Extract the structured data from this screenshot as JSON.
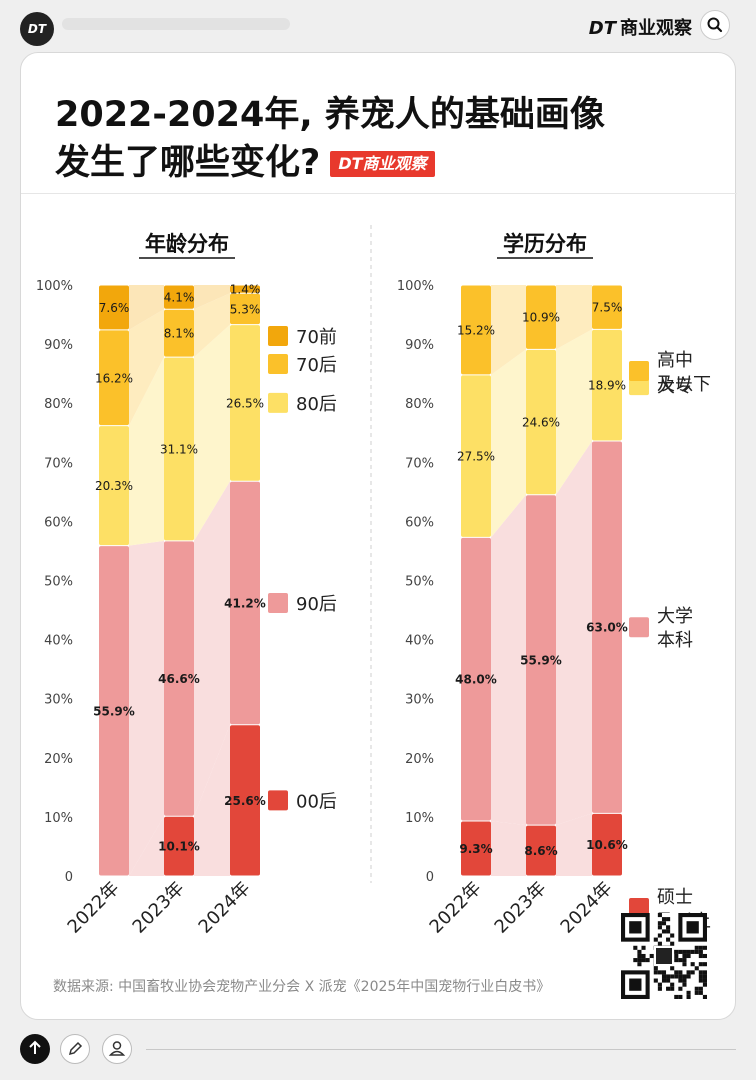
{
  "header": {
    "logo": "DT",
    "brand_dt": "DT",
    "brand_name": "商业观察"
  },
  "title": {
    "line1": "2022-2024年, 养宠人的基础画像",
    "line2": "发生了哪些变化?",
    "badge": "DT商业观察"
  },
  "source": "数据来源: 中国畜牧业协会宠物产业分会 X 派宠《2025年中国宠物行业白皮书》",
  "colors": {
    "red": "#e2473a",
    "pink": "#ee9a9a",
    "pink_light": "#f9dede",
    "yellow": "#fde065",
    "yellow_light": "#fef5cc",
    "amber": "#fbc12a",
    "amber_light": "#feecbf",
    "orange": "#f2a70c",
    "orange_light": "#fce6b8"
  },
  "chart_data": [
    {
      "type": "bar",
      "stacked": true,
      "title": "年龄分布",
      "categories": [
        "2022年",
        "2023年",
        "2024年"
      ],
      "ylim": [
        0,
        100
      ],
      "yticks": [
        "0",
        "10%",
        "20%",
        "30%",
        "40%",
        "50%",
        "60%",
        "70%",
        "80%",
        "90%",
        "100%"
      ],
      "series": [
        {
          "name": "00后",
          "values": [
            0,
            10.1,
            25.6
          ],
          "labels": [
            "",
            "10.1%",
            "25.6%"
          ],
          "color": "#e2473a",
          "band": "#f9dede"
        },
        {
          "name": "90后",
          "values": [
            55.9,
            46.6,
            41.2
          ],
          "labels": [
            "55.9%",
            "46.6%",
            "41.2%"
          ],
          "color": "#ee9a9a",
          "band": "#f9dede"
        },
        {
          "name": "80后",
          "values": [
            20.3,
            31.1,
            26.5
          ],
          "labels": [
            "20.3%",
            "31.1%",
            "26.5%"
          ],
          "color": "#fde065",
          "band": "#fef5cc"
        },
        {
          "name": "70后",
          "values": [
            16.2,
            8.1,
            5.3
          ],
          "labels": [
            "16.2%",
            "8.1%",
            "5.3%"
          ],
          "color": "#fbc12a",
          "band": "#feecbf"
        },
        {
          "name": "70前",
          "values": [
            7.6,
            4.1,
            1.4
          ],
          "labels": [
            "7.6%",
            "4.1%",
            "1.4%"
          ],
          "color": "#f2a70c",
          "band": "#fce6b8"
        }
      ],
      "legend": [
        "70前",
        "70后",
        "80后",
        "90后",
        "00后"
      ]
    },
    {
      "type": "bar",
      "stacked": true,
      "title": "学历分布",
      "categories": [
        "2022年",
        "2023年",
        "2024年"
      ],
      "ylim": [
        0,
        100
      ],
      "yticks": [
        "0",
        "10%",
        "20%",
        "30%",
        "40%",
        "50%",
        "60%",
        "70%",
        "80%",
        "90%",
        "100%"
      ],
      "series": [
        {
          "name": "硕士\n及以上",
          "values": [
            9.3,
            8.6,
            10.6
          ],
          "labels": [
            "9.3%",
            "8.6%",
            "10.6%"
          ],
          "color": "#e2473a",
          "band": "#f9dede"
        },
        {
          "name": "大学\n本科",
          "values": [
            48.0,
            55.9,
            63.0
          ],
          "labels": [
            "48.0%",
            "55.9%",
            "63.0%"
          ],
          "color": "#ee9a9a",
          "band": "#f9dede"
        },
        {
          "name": "大专",
          "values": [
            27.5,
            24.6,
            18.9
          ],
          "labels": [
            "27.5%",
            "24.6%",
            "18.9%"
          ],
          "color": "#fde065",
          "band": "#fef5cc"
        },
        {
          "name": "高中\n及以下",
          "values": [
            15.2,
            10.9,
            7.5
          ],
          "labels": [
            "15.2%",
            "10.9%",
            "7.5%"
          ],
          "color": "#fbc12a",
          "band": "#feecbf"
        }
      ],
      "legend": [
        "高中\n及以下",
        "大专",
        "大学\n本科",
        "硕士\n及以上"
      ]
    }
  ]
}
